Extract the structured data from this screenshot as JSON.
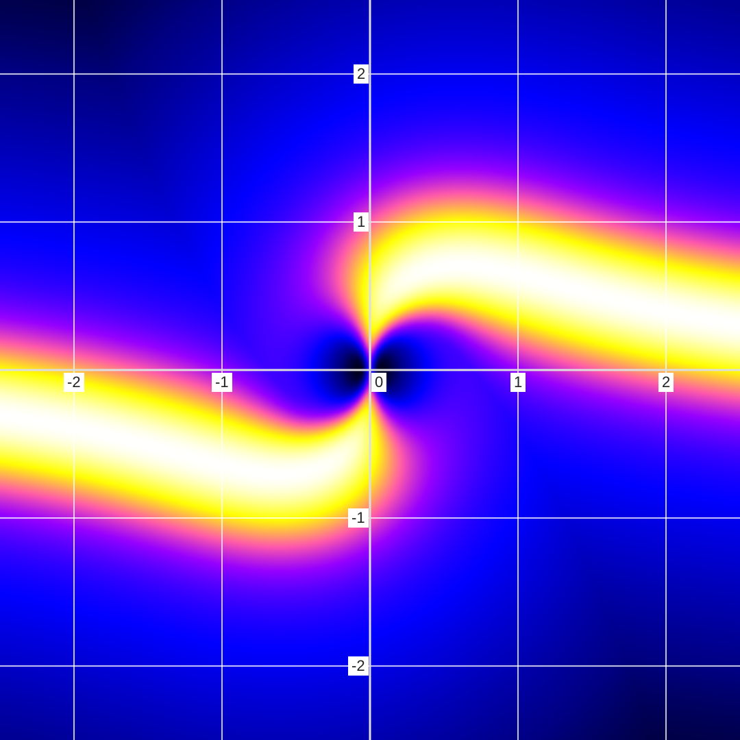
{
  "chart_data": {
    "type": "heatmap",
    "title": "",
    "xlabel": "",
    "ylabel": "",
    "xlim": [
      -2.5,
      2.5
    ],
    "ylim": [
      -2.5,
      2.5
    ],
    "grid": true,
    "x_ticks": [
      "-2",
      "-1",
      "0",
      "1",
      "2"
    ],
    "y_ticks": [
      "2",
      "1",
      "-1",
      "-2"
    ],
    "x_tick_values": [
      -2,
      -1,
      0,
      1,
      2
    ],
    "y_tick_values": [
      2,
      1,
      -1,
      -2
    ],
    "colormap": [
      "#000000",
      "#000082",
      "#0000ff",
      "#9600ff",
      "#ff5aaa",
      "#ffff00",
      "#ffffff"
    ],
    "ridge_curve_samples": {
      "x": [
        0,
        0.25,
        0.5,
        0.7,
        1.0,
        1.5,
        2.0,
        2.5
      ],
      "y": [
        0,
        0.55,
        0.69,
        0.71,
        0.67,
        0.55,
        0.46,
        0.39
      ]
    },
    "symmetry": "odd (point-symmetric about origin)",
    "zero_at": [
      0,
      0
    ]
  }
}
